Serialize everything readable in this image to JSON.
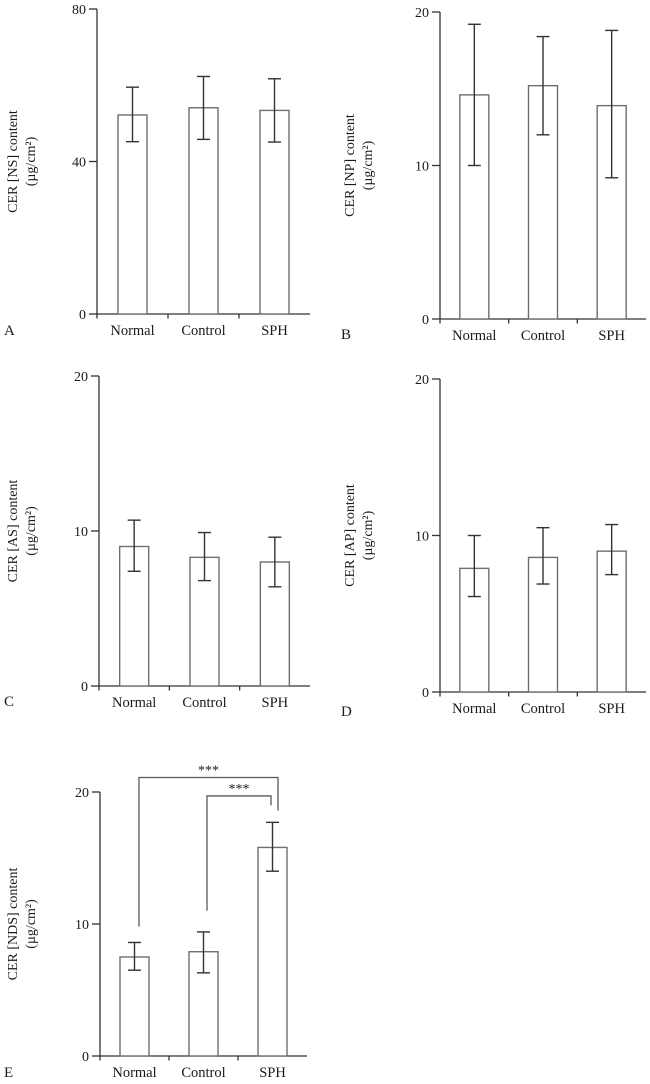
{
  "figure_background": "#ffffff",
  "colors": {
    "axis": "#333333",
    "bar_fill": "#ffffff",
    "bar_stroke": "#6e6e6e",
    "error_bar": "#333333",
    "bracket": "#595959",
    "text": "#1a1a1a"
  },
  "chart_data": [
    {
      "type": "bar",
      "panel_label": "A",
      "ylabel_lines": [
        "CER [NS] content",
        "(µg/cm²)"
      ],
      "categories": [
        "Normal",
        "Control",
        "SPH"
      ],
      "values": [
        52.2,
        54.1,
        53.4
      ],
      "error_low": [
        45.2,
        45.8,
        45.1
      ],
      "error_high": [
        59.5,
        62.3,
        61.7
      ],
      "ylim": [
        0,
        80
      ],
      "yticks": [
        0,
        40,
        80
      ],
      "grid": false,
      "legend": null
    },
    {
      "type": "bar",
      "panel_label": "B",
      "ylabel_lines": [
        "CER [NP] content",
        "(µg/cm²)"
      ],
      "categories": [
        "Normal",
        "Control",
        "SPH"
      ],
      "values": [
        14.6,
        15.2,
        13.9
      ],
      "error_low": [
        10.0,
        12.0,
        9.2
      ],
      "error_high": [
        19.2,
        18.4,
        18.8
      ],
      "ylim": [
        0,
        20
      ],
      "yticks": [
        0,
        10,
        20
      ],
      "grid": false,
      "legend": null
    },
    {
      "type": "bar",
      "panel_label": "C",
      "ylabel_lines": [
        "CER [AS] content",
        "(µg/cm²)"
      ],
      "categories": [
        "Normal",
        "Control",
        "SPH"
      ],
      "values": [
        9.0,
        8.3,
        8.0
      ],
      "error_low": [
        7.4,
        6.8,
        6.4
      ],
      "error_high": [
        10.7,
        9.9,
        9.6
      ],
      "ylim": [
        0,
        20
      ],
      "yticks": [
        0,
        10,
        20
      ],
      "grid": false,
      "legend": null
    },
    {
      "type": "bar",
      "panel_label": "D",
      "ylabel_lines": [
        "CER [AP] content",
        "(µg/cm²)"
      ],
      "categories": [
        "Normal",
        "Control",
        "SPH"
      ],
      "values": [
        7.9,
        8.6,
        9.0
      ],
      "error_low": [
        6.1,
        6.9,
        7.5
      ],
      "error_high": [
        10.0,
        10.5,
        10.7
      ],
      "ylim": [
        0,
        20
      ],
      "yticks": [
        0,
        10,
        20
      ],
      "grid": false,
      "legend": null
    },
    {
      "type": "bar",
      "panel_label": "E",
      "ylabel_lines": [
        "CER [NDS] content",
        "(µg/cm²)"
      ],
      "categories": [
        "Normal",
        "Control",
        "SPH"
      ],
      "values": [
        7.5,
        7.9,
        15.8
      ],
      "error_low": [
        6.5,
        6.3,
        14.0
      ],
      "error_high": [
        8.6,
        9.4,
        17.7
      ],
      "ylim": [
        0,
        20
      ],
      "yticks": [
        0,
        10,
        20
      ],
      "grid": false,
      "legend": null,
      "significance": [
        {
          "from": "Normal",
          "to": "SPH",
          "label": "***",
          "line_value": 21.1,
          "from_drop_value": 9.8,
          "to_drop_value": 18.6
        },
        {
          "from": "Control",
          "to": "SPH",
          "label": "***",
          "line_value": 19.7,
          "from_drop_value": 11.0,
          "to_drop_value": 19.0
        }
      ]
    }
  ]
}
